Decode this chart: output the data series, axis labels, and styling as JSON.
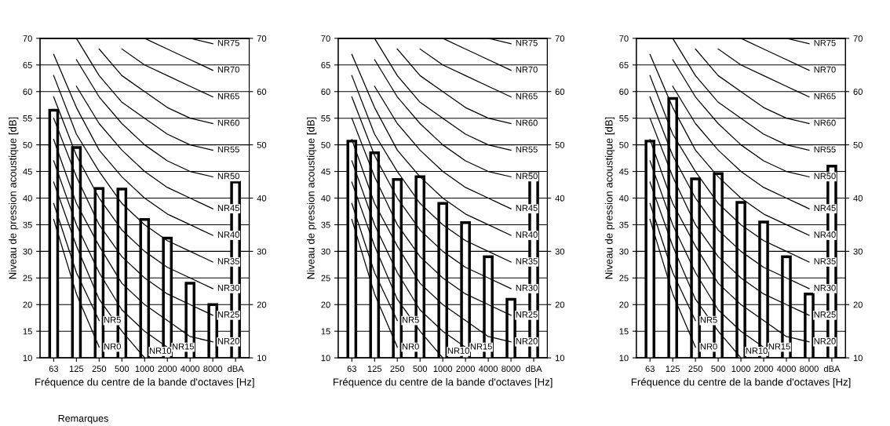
{
  "chart_data": [
    {
      "type": "bar",
      "xlabel": "Fréquence du centre de la bande d'octaves [Hz]",
      "ylabel": "Niveau de pression acoustique [dB]",
      "categories": [
        "63",
        "125",
        "250",
        "500",
        "1000",
        "2000",
        "4000",
        "8000",
        "dBA"
      ],
      "ylim": [
        10,
        70
      ],
      "yticks": [
        10,
        15,
        20,
        25,
        30,
        35,
        40,
        45,
        50,
        55,
        60,
        65,
        70
      ],
      "y2lim": [
        10,
        70
      ],
      "y2ticks": [
        10,
        20,
        30,
        40,
        50,
        60,
        70
      ],
      "grid": "y",
      "annotations": [
        "Remarques"
      ],
      "series": [
        {
          "color": "#000000",
          "values": [
            56.5,
            49.5,
            41.8,
            41.7,
            36,
            32.5,
            24,
            20,
            43
          ]
        },
        {
          "type": "line",
          "name": "NR0",
          "color": "#000000",
          "values": [
            36,
            22,
            12,
            null,
            null,
            null,
            null,
            null,
            null
          ]
        },
        {
          "type": "line",
          "name": "NR5",
          "color": "#000000",
          "values": [
            39,
            26,
            17,
            null,
            null,
            null,
            null,
            null,
            null
          ]
        },
        {
          "type": "line",
          "name": "NR10",
          "color": "#000000",
          "values": [
            43,
            31,
            21,
            15,
            10,
            null,
            null,
            null,
            null
          ]
        },
        {
          "type": "line",
          "name": "NR15",
          "color": "#000000",
          "values": [
            47,
            35,
            26,
            19,
            15,
            12,
            null,
            null,
            null
          ]
        },
        {
          "type": "line",
          "name": "NR20",
          "color": "#000000",
          "values": [
            51,
            39,
            31,
            24,
            20,
            17,
            14,
            13,
            null
          ]
        },
        {
          "type": "line",
          "name": "NR25",
          "color": "#000000",
          "values": [
            55,
            44,
            35,
            29,
            25,
            22,
            20,
            18,
            null
          ]
        },
        {
          "type": "line",
          "name": "NR30",
          "color": "#000000",
          "values": [
            59,
            48,
            40,
            34,
            30,
            27,
            25,
            23,
            null
          ]
        },
        {
          "type": "line",
          "name": "NR35",
          "color": "#000000",
          "values": [
            63,
            52,
            45,
            39,
            35,
            32,
            30,
            28,
            null
          ]
        },
        {
          "type": "line",
          "name": "NR40",
          "color": "#000000",
          "values": [
            67,
            57,
            49,
            44,
            40,
            37,
            35,
            33,
            null
          ]
        },
        {
          "type": "line",
          "name": "NR45",
          "color": "#000000",
          "values": [
            null,
            61,
            54,
            49,
            45,
            42,
            40,
            38,
            null
          ]
        },
        {
          "type": "line",
          "name": "NR50",
          "color": "#000000",
          "values": [
            null,
            66,
            59,
            54,
            50,
            47,
            45,
            44,
            null
          ]
        },
        {
          "type": "line",
          "name": "NR55",
          "color": "#000000",
          "values": [
            null,
            70,
            63,
            58,
            55,
            52,
            50,
            49,
            null
          ]
        },
        {
          "type": "line",
          "name": "NR60",
          "color": "#000000",
          "values": [
            null,
            null,
            68,
            63,
            60,
            57,
            55,
            54,
            null
          ]
        },
        {
          "type": "line",
          "name": "NR65",
          "color": "#000000",
          "values": [
            null,
            null,
            null,
            68,
            65,
            63,
            61,
            59,
            null
          ]
        },
        {
          "type": "line",
          "name": "NR70",
          "color": "#000000",
          "values": [
            null,
            null,
            null,
            null,
            70,
            68,
            66,
            64,
            null
          ]
        },
        {
          "type": "line",
          "name": "NR75",
          "color": "#000000",
          "values": [
            null,
            null,
            null,
            null,
            null,
            null,
            70,
            69,
            null
          ]
        }
      ]
    },
    {
      "type": "bar",
      "xlabel": "Fréquence du centre de la bande d'octaves [Hz]",
      "ylabel": "Niveau de pression acoustique [dB]",
      "categories": [
        "63",
        "125",
        "250",
        "500",
        "1000",
        "2000",
        "4000",
        "8000",
        "dBA"
      ],
      "ylim": [
        10,
        70
      ],
      "yticks": [
        10,
        15,
        20,
        25,
        30,
        35,
        40,
        45,
        50,
        55,
        60,
        65,
        70
      ],
      "y2lim": [
        10,
        70
      ],
      "y2ticks": [
        10,
        20,
        30,
        40,
        50,
        60,
        70
      ],
      "grid": "y",
      "series": [
        {
          "color": "#000000",
          "values": [
            50.7,
            48.5,
            43.5,
            44,
            39,
            35.4,
            29,
            21,
            44.7
          ]
        },
        {
          "type": "line",
          "name": "NR0",
          "color": "#000000",
          "values": [
            36,
            22,
            12,
            null,
            null,
            null,
            null,
            null,
            null
          ]
        },
        {
          "type": "line",
          "name": "NR5",
          "color": "#000000",
          "values": [
            39,
            26,
            17,
            null,
            null,
            null,
            null,
            null,
            null
          ]
        },
        {
          "type": "line",
          "name": "NR10",
          "color": "#000000",
          "values": [
            43,
            31,
            21,
            15,
            10,
            null,
            null,
            null,
            null
          ]
        },
        {
          "type": "line",
          "name": "NR15",
          "color": "#000000",
          "values": [
            47,
            35,
            26,
            19,
            15,
            12,
            null,
            null,
            null
          ]
        },
        {
          "type": "line",
          "name": "NR20",
          "color": "#000000",
          "values": [
            51,
            39,
            31,
            24,
            20,
            17,
            14,
            13,
            null
          ]
        },
        {
          "type": "line",
          "name": "NR25",
          "color": "#000000",
          "values": [
            55,
            44,
            35,
            29,
            25,
            22,
            20,
            18,
            null
          ]
        },
        {
          "type": "line",
          "name": "NR30",
          "color": "#000000",
          "values": [
            59,
            48,
            40,
            34,
            30,
            27,
            25,
            23,
            null
          ]
        },
        {
          "type": "line",
          "name": "NR35",
          "color": "#000000",
          "values": [
            63,
            52,
            45,
            39,
            35,
            32,
            30,
            28,
            null
          ]
        },
        {
          "type": "line",
          "name": "NR40",
          "color": "#000000",
          "values": [
            67,
            57,
            49,
            44,
            40,
            37,
            35,
            33,
            null
          ]
        },
        {
          "type": "line",
          "name": "NR45",
          "color": "#000000",
          "values": [
            null,
            61,
            54,
            49,
            45,
            42,
            40,
            38,
            null
          ]
        },
        {
          "type": "line",
          "name": "NR50",
          "color": "#000000",
          "values": [
            null,
            66,
            59,
            54,
            50,
            47,
            45,
            44,
            null
          ]
        },
        {
          "type": "line",
          "name": "NR55",
          "color": "#000000",
          "values": [
            null,
            70,
            63,
            58,
            55,
            52,
            50,
            49,
            null
          ]
        },
        {
          "type": "line",
          "name": "NR60",
          "color": "#000000",
          "values": [
            null,
            null,
            68,
            63,
            60,
            57,
            55,
            54,
            null
          ]
        },
        {
          "type": "line",
          "name": "NR65",
          "color": "#000000",
          "values": [
            null,
            null,
            null,
            68,
            65,
            63,
            61,
            59,
            null
          ]
        },
        {
          "type": "line",
          "name": "NR70",
          "color": "#000000",
          "values": [
            null,
            null,
            null,
            null,
            70,
            68,
            66,
            64,
            null
          ]
        },
        {
          "type": "line",
          "name": "NR75",
          "color": "#000000",
          "values": [
            null,
            null,
            null,
            null,
            null,
            null,
            70,
            69,
            null
          ]
        }
      ]
    },
    {
      "type": "bar",
      "xlabel": "Fréquence du centre de la bande d'octaves [Hz]",
      "ylabel": "Niveau de pression acoustique [dB]",
      "categories": [
        "63",
        "125",
        "250",
        "500",
        "1000",
        "2000",
        "4000",
        "8000",
        "dBA"
      ],
      "ylim": [
        10,
        70
      ],
      "yticks": [
        10,
        15,
        20,
        25,
        30,
        35,
        40,
        45,
        50,
        55,
        60,
        65,
        70
      ],
      "y2lim": [
        10,
        70
      ],
      "y2ticks": [
        10,
        20,
        30,
        40,
        50,
        60,
        70
      ],
      "grid": "y",
      "series": [
        {
          "color": "#000000",
          "values": [
            50.7,
            58.7,
            43.6,
            44.6,
            39.2,
            35.5,
            29,
            22,
            46
          ]
        },
        {
          "type": "line",
          "name": "NR0",
          "color": "#000000",
          "values": [
            36,
            22,
            12,
            null,
            null,
            null,
            null,
            null,
            null
          ]
        },
        {
          "type": "line",
          "name": "NR5",
          "color": "#000000",
          "values": [
            39,
            26,
            17,
            null,
            null,
            null,
            null,
            null,
            null
          ]
        },
        {
          "type": "line",
          "name": "NR10",
          "color": "#000000",
          "values": [
            43,
            31,
            21,
            15,
            10,
            null,
            null,
            null,
            null
          ]
        },
        {
          "type": "line",
          "name": "NR15",
          "color": "#000000",
          "values": [
            47,
            35,
            26,
            19,
            15,
            12,
            null,
            null,
            null
          ]
        },
        {
          "type": "line",
          "name": "NR20",
          "color": "#000000",
          "values": [
            51,
            39,
            31,
            24,
            20,
            17,
            14,
            13,
            null
          ]
        },
        {
          "type": "line",
          "name": "NR25",
          "color": "#000000",
          "values": [
            55,
            44,
            35,
            29,
            25,
            22,
            20,
            18,
            null
          ]
        },
        {
          "type": "line",
          "name": "NR30",
          "color": "#000000",
          "values": [
            59,
            48,
            40,
            34,
            30,
            27,
            25,
            23,
            null
          ]
        },
        {
          "type": "line",
          "name": "NR35",
          "color": "#000000",
          "values": [
            63,
            52,
            45,
            39,
            35,
            32,
            30,
            28,
            null
          ]
        },
        {
          "type": "line",
          "name": "NR40",
          "color": "#000000",
          "values": [
            67,
            57,
            49,
            44,
            40,
            37,
            35,
            33,
            null
          ]
        },
        {
          "type": "line",
          "name": "NR45",
          "color": "#000000",
          "values": [
            null,
            61,
            54,
            49,
            45,
            42,
            40,
            38,
            null
          ]
        },
        {
          "type": "line",
          "name": "NR50",
          "color": "#000000",
          "values": [
            null,
            66,
            59,
            54,
            50,
            47,
            45,
            44,
            null
          ]
        },
        {
          "type": "line",
          "name": "NR55",
          "color": "#000000",
          "values": [
            null,
            70,
            63,
            58,
            55,
            52,
            50,
            49,
            null
          ]
        },
        {
          "type": "line",
          "name": "NR60",
          "color": "#000000",
          "values": [
            null,
            null,
            68,
            63,
            60,
            57,
            55,
            54,
            null
          ]
        },
        {
          "type": "line",
          "name": "NR65",
          "color": "#000000",
          "values": [
            null,
            null,
            null,
            68,
            65,
            63,
            61,
            59,
            null
          ]
        },
        {
          "type": "line",
          "name": "NR70",
          "color": "#000000",
          "values": [
            null,
            null,
            null,
            null,
            70,
            68,
            66,
            64,
            null
          ]
        },
        {
          "type": "line",
          "name": "NR75",
          "color": "#000000",
          "values": [
            null,
            null,
            null,
            null,
            null,
            null,
            70,
            69,
            null
          ]
        }
      ]
    }
  ]
}
